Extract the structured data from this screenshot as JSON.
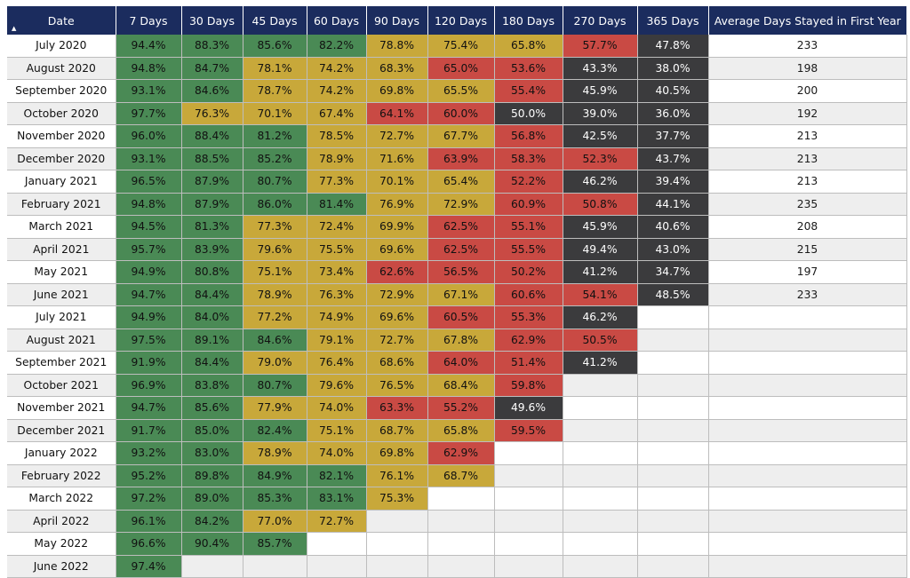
{
  "table": {
    "sort_indicator": "▲",
    "headers": [
      "Date",
      "7 Days",
      "30 Days",
      "45 Days",
      "60 Days",
      "90 Days",
      "120 Days",
      "180 Days",
      "270 Days",
      "365 Days",
      "Average Days Stayed in First Year"
    ],
    "colors": {
      "green": "#4a8a55",
      "yellow": "#c8a83a",
      "red": "#c94a44",
      "dark": "#3b3b3d",
      "header": "#1b2c5e"
    },
    "rows": [
      {
        "date": "July 2020",
        "cells": [
          [
            "94.4%",
            "green"
          ],
          [
            "88.3%",
            "green"
          ],
          [
            "85.6%",
            "green"
          ],
          [
            "82.2%",
            "green"
          ],
          [
            "78.8%",
            "yellow"
          ],
          [
            "75.4%",
            "yellow"
          ],
          [
            "65.8%",
            "yellow"
          ],
          [
            "57.7%",
            "red"
          ],
          [
            "47.8%",
            "dark"
          ]
        ],
        "avg": "233"
      },
      {
        "date": "August 2020",
        "cells": [
          [
            "94.8%",
            "green"
          ],
          [
            "84.7%",
            "green"
          ],
          [
            "78.1%",
            "yellow"
          ],
          [
            "74.2%",
            "yellow"
          ],
          [
            "68.3%",
            "yellow"
          ],
          [
            "65.0%",
            "red"
          ],
          [
            "53.6%",
            "red"
          ],
          [
            "43.3%",
            "dark"
          ],
          [
            "38.0%",
            "dark"
          ]
        ],
        "avg": "198"
      },
      {
        "date": "September 2020",
        "cells": [
          [
            "93.1%",
            "green"
          ],
          [
            "84.6%",
            "green"
          ],
          [
            "78.7%",
            "yellow"
          ],
          [
            "74.2%",
            "yellow"
          ],
          [
            "69.8%",
            "yellow"
          ],
          [
            "65.5%",
            "yellow"
          ],
          [
            "55.4%",
            "red"
          ],
          [
            "45.9%",
            "dark"
          ],
          [
            "40.5%",
            "dark"
          ]
        ],
        "avg": "200"
      },
      {
        "date": "October 2020",
        "cells": [
          [
            "97.7%",
            "green"
          ],
          [
            "76.3%",
            "yellow"
          ],
          [
            "70.1%",
            "yellow"
          ],
          [
            "67.4%",
            "yellow"
          ],
          [
            "64.1%",
            "red"
          ],
          [
            "60.0%",
            "red"
          ],
          [
            "50.0%",
            "dark"
          ],
          [
            "39.0%",
            "dark"
          ],
          [
            "36.0%",
            "dark"
          ]
        ],
        "avg": "192"
      },
      {
        "date": "November 2020",
        "cells": [
          [
            "96.0%",
            "green"
          ],
          [
            "88.4%",
            "green"
          ],
          [
            "81.2%",
            "green"
          ],
          [
            "78.5%",
            "yellow"
          ],
          [
            "72.7%",
            "yellow"
          ],
          [
            "67.7%",
            "yellow"
          ],
          [
            "56.8%",
            "red"
          ],
          [
            "42.5%",
            "dark"
          ],
          [
            "37.7%",
            "dark"
          ]
        ],
        "avg": "213"
      },
      {
        "date": "December 2020",
        "cells": [
          [
            "93.1%",
            "green"
          ],
          [
            "88.5%",
            "green"
          ],
          [
            "85.2%",
            "green"
          ],
          [
            "78.9%",
            "yellow"
          ],
          [
            "71.6%",
            "yellow"
          ],
          [
            "63.9%",
            "red"
          ],
          [
            "58.3%",
            "red"
          ],
          [
            "52.3%",
            "red"
          ],
          [
            "43.7%",
            "dark"
          ]
        ],
        "avg": "213"
      },
      {
        "date": "January 2021",
        "cells": [
          [
            "96.5%",
            "green"
          ],
          [
            "87.9%",
            "green"
          ],
          [
            "80.7%",
            "green"
          ],
          [
            "77.3%",
            "yellow"
          ],
          [
            "70.1%",
            "yellow"
          ],
          [
            "65.4%",
            "yellow"
          ],
          [
            "52.2%",
            "red"
          ],
          [
            "46.2%",
            "dark"
          ],
          [
            "39.4%",
            "dark"
          ]
        ],
        "avg": "213"
      },
      {
        "date": "February 2021",
        "cells": [
          [
            "94.8%",
            "green"
          ],
          [
            "87.9%",
            "green"
          ],
          [
            "86.0%",
            "green"
          ],
          [
            "81.4%",
            "green"
          ],
          [
            "76.9%",
            "yellow"
          ],
          [
            "72.9%",
            "yellow"
          ],
          [
            "60.9%",
            "red"
          ],
          [
            "50.8%",
            "red"
          ],
          [
            "44.1%",
            "dark"
          ]
        ],
        "avg": "235"
      },
      {
        "date": "March 2021",
        "cells": [
          [
            "94.5%",
            "green"
          ],
          [
            "81.3%",
            "green"
          ],
          [
            "77.3%",
            "yellow"
          ],
          [
            "72.4%",
            "yellow"
          ],
          [
            "69.9%",
            "yellow"
          ],
          [
            "62.5%",
            "red"
          ],
          [
            "55.1%",
            "red"
          ],
          [
            "45.9%",
            "dark"
          ],
          [
            "40.6%",
            "dark"
          ]
        ],
        "avg": "208"
      },
      {
        "date": "April 2021",
        "cells": [
          [
            "95.7%",
            "green"
          ],
          [
            "83.9%",
            "green"
          ],
          [
            "79.6%",
            "yellow"
          ],
          [
            "75.5%",
            "yellow"
          ],
          [
            "69.6%",
            "yellow"
          ],
          [
            "62.5%",
            "red"
          ],
          [
            "55.5%",
            "red"
          ],
          [
            "49.4%",
            "dark"
          ],
          [
            "43.0%",
            "dark"
          ]
        ],
        "avg": "215"
      },
      {
        "date": "May 2021",
        "cells": [
          [
            "94.9%",
            "green"
          ],
          [
            "80.8%",
            "green"
          ],
          [
            "75.1%",
            "yellow"
          ],
          [
            "73.4%",
            "yellow"
          ],
          [
            "62.6%",
            "red"
          ],
          [
            "56.5%",
            "red"
          ],
          [
            "50.2%",
            "red"
          ],
          [
            "41.2%",
            "dark"
          ],
          [
            "34.7%",
            "dark"
          ]
        ],
        "avg": "197"
      },
      {
        "date": "June 2021",
        "cells": [
          [
            "94.7%",
            "green"
          ],
          [
            "84.4%",
            "green"
          ],
          [
            "78.9%",
            "yellow"
          ],
          [
            "76.3%",
            "yellow"
          ],
          [
            "72.9%",
            "yellow"
          ],
          [
            "67.1%",
            "yellow"
          ],
          [
            "60.6%",
            "red"
          ],
          [
            "54.1%",
            "red"
          ],
          [
            "48.5%",
            "dark"
          ]
        ],
        "avg": "233"
      },
      {
        "date": "July 2021",
        "cells": [
          [
            "94.9%",
            "green"
          ],
          [
            "84.0%",
            "green"
          ],
          [
            "77.2%",
            "yellow"
          ],
          [
            "74.9%",
            "yellow"
          ],
          [
            "69.6%",
            "yellow"
          ],
          [
            "60.5%",
            "red"
          ],
          [
            "55.3%",
            "red"
          ],
          [
            "46.2%",
            "dark"
          ],
          [
            "",
            ""
          ]
        ],
        "avg": ""
      },
      {
        "date": "August 2021",
        "cells": [
          [
            "97.5%",
            "green"
          ],
          [
            "89.1%",
            "green"
          ],
          [
            "84.6%",
            "green"
          ],
          [
            "79.1%",
            "yellow"
          ],
          [
            "72.7%",
            "yellow"
          ],
          [
            "67.8%",
            "yellow"
          ],
          [
            "62.9%",
            "red"
          ],
          [
            "50.5%",
            "red"
          ],
          [
            "",
            ""
          ]
        ],
        "avg": ""
      },
      {
        "date": "September 2021",
        "cells": [
          [
            "91.9%",
            "green"
          ],
          [
            "84.4%",
            "green"
          ],
          [
            "79.0%",
            "yellow"
          ],
          [
            "76.4%",
            "yellow"
          ],
          [
            "68.6%",
            "yellow"
          ],
          [
            "64.0%",
            "red"
          ],
          [
            "51.4%",
            "red"
          ],
          [
            "41.2%",
            "dark"
          ],
          [
            "",
            ""
          ]
        ],
        "avg": ""
      },
      {
        "date": "October 2021",
        "cells": [
          [
            "96.9%",
            "green"
          ],
          [
            "83.8%",
            "green"
          ],
          [
            "80.7%",
            "green"
          ],
          [
            "79.6%",
            "yellow"
          ],
          [
            "76.5%",
            "yellow"
          ],
          [
            "68.4%",
            "yellow"
          ],
          [
            "59.8%",
            "red"
          ],
          [
            "",
            ""
          ],
          [
            "",
            ""
          ]
        ],
        "avg": ""
      },
      {
        "date": "November 2021",
        "cells": [
          [
            "94.7%",
            "green"
          ],
          [
            "85.6%",
            "green"
          ],
          [
            "77.9%",
            "yellow"
          ],
          [
            "74.0%",
            "yellow"
          ],
          [
            "63.3%",
            "red"
          ],
          [
            "55.2%",
            "red"
          ],
          [
            "49.6%",
            "dark"
          ],
          [
            "",
            ""
          ],
          [
            "",
            ""
          ]
        ],
        "avg": ""
      },
      {
        "date": "December 2021",
        "cells": [
          [
            "91.7%",
            "green"
          ],
          [
            "85.0%",
            "green"
          ],
          [
            "82.4%",
            "green"
          ],
          [
            "75.1%",
            "yellow"
          ],
          [
            "68.7%",
            "yellow"
          ],
          [
            "65.8%",
            "yellow"
          ],
          [
            "59.5%",
            "red"
          ],
          [
            "",
            ""
          ],
          [
            "",
            ""
          ]
        ],
        "avg": ""
      },
      {
        "date": "January 2022",
        "cells": [
          [
            "93.2%",
            "green"
          ],
          [
            "83.0%",
            "green"
          ],
          [
            "78.9%",
            "yellow"
          ],
          [
            "74.0%",
            "yellow"
          ],
          [
            "69.8%",
            "yellow"
          ],
          [
            "62.9%",
            "red"
          ],
          [
            "",
            ""
          ],
          [
            "",
            ""
          ],
          [
            "",
            ""
          ]
        ],
        "avg": ""
      },
      {
        "date": "February 2022",
        "cells": [
          [
            "95.2%",
            "green"
          ],
          [
            "89.8%",
            "green"
          ],
          [
            "84.9%",
            "green"
          ],
          [
            "82.1%",
            "green"
          ],
          [
            "76.1%",
            "yellow"
          ],
          [
            "68.7%",
            "yellow"
          ],
          [
            "",
            ""
          ],
          [
            "",
            ""
          ],
          [
            "",
            ""
          ]
        ],
        "avg": ""
      },
      {
        "date": "March 2022",
        "cells": [
          [
            "97.2%",
            "green"
          ],
          [
            "89.0%",
            "green"
          ],
          [
            "85.3%",
            "green"
          ],
          [
            "83.1%",
            "green"
          ],
          [
            "75.3%",
            "yellow"
          ],
          [
            "",
            ""
          ],
          [
            "",
            ""
          ],
          [
            "",
            ""
          ],
          [
            "",
            ""
          ]
        ],
        "avg": ""
      },
      {
        "date": "April 2022",
        "cells": [
          [
            "96.1%",
            "green"
          ],
          [
            "84.2%",
            "green"
          ],
          [
            "77.0%",
            "yellow"
          ],
          [
            "72.7%",
            "yellow"
          ],
          [
            "",
            ""
          ],
          [
            "",
            ""
          ],
          [
            "",
            ""
          ],
          [
            "",
            ""
          ],
          [
            "",
            ""
          ]
        ],
        "avg": ""
      },
      {
        "date": "May 2022",
        "cells": [
          [
            "96.6%",
            "green"
          ],
          [
            "90.4%",
            "green"
          ],
          [
            "85.7%",
            "green"
          ],
          [
            "",
            ""
          ],
          [
            "",
            ""
          ],
          [
            "",
            ""
          ],
          [
            "",
            ""
          ],
          [
            "",
            ""
          ],
          [
            "",
            ""
          ]
        ],
        "avg": ""
      },
      {
        "date": "June 2022",
        "cells": [
          [
            "97.4%",
            "green"
          ],
          [
            "",
            ""
          ],
          [
            "",
            ""
          ],
          [
            "",
            ""
          ],
          [
            "",
            ""
          ],
          [
            "",
            ""
          ],
          [
            "",
            ""
          ],
          [
            "",
            ""
          ],
          [
            "",
            ""
          ]
        ],
        "avg": ""
      }
    ]
  }
}
